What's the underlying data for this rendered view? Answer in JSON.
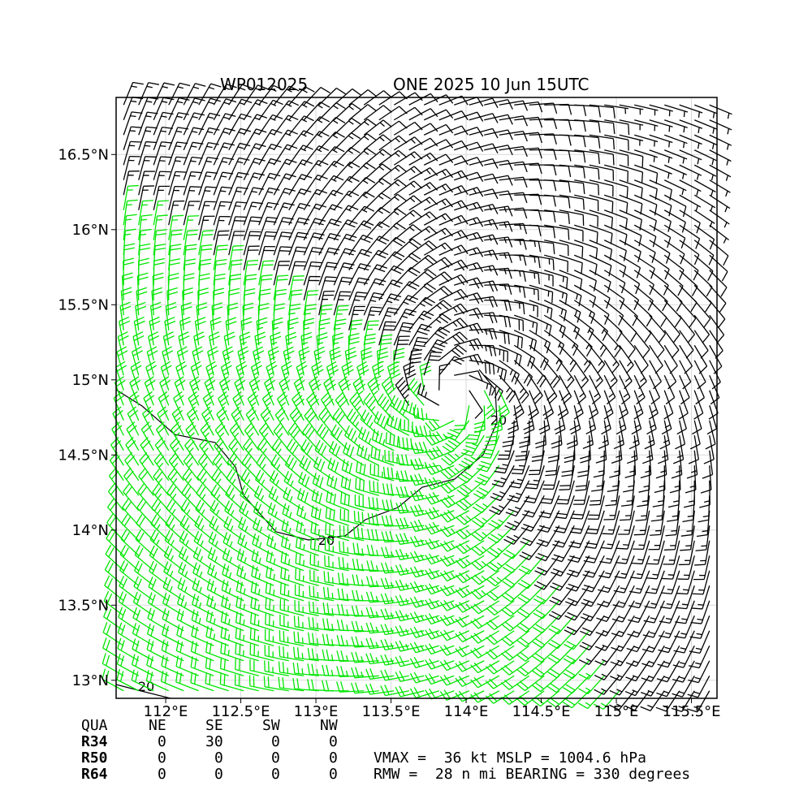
{
  "title": {
    "left": "WP012025",
    "right": "ONE 2025 10 Jun 15UTC"
  },
  "chart_data": {
    "type": "wind_barb_map",
    "xlim": [
      111.67,
      115.67
    ],
    "ylim": [
      12.88,
      16.88
    ],
    "xticks": [
      112.0,
      112.5,
      113.0,
      113.5,
      114.0,
      114.5,
      115.0,
      115.5
    ],
    "xtick_labels": [
      "112°E",
      "112.5°E",
      "113°E",
      "113.5°E",
      "114°E",
      "114.5°E",
      "115°E",
      "115.5°E"
    ],
    "yticks": [
      13.0,
      13.5,
      14.0,
      14.5,
      15.0,
      15.5,
      16.0,
      16.5
    ],
    "ytick_labels": [
      "13°N",
      "13.5°N",
      "14°N",
      "14.5°N",
      "15°N",
      "15.5°N",
      "16°N",
      "16.5°N"
    ],
    "grid": true,
    "center": {
      "lon": 113.9,
      "lat": 14.9
    },
    "wind_field": {
      "max_speed_kt": 36,
      "rmw_nmi": 28,
      "strong_quadrant": "SW",
      "barb_spacing_deg": 0.1
    },
    "contour_labels": [
      "20",
      "20",
      "20"
    ],
    "colors": {
      "weak_barb": "#000000",
      "strong_barb": "#00e600",
      "contour": "#000000",
      "grid": "#d9d9d9"
    }
  },
  "radii_table": {
    "headers": [
      "QUA",
      "NE",
      "SE",
      "SW",
      "NW"
    ],
    "rows": [
      {
        "label": "R34",
        "values": [
          "0",
          "30",
          "0",
          "0"
        ]
      },
      {
        "label": "R50",
        "values": [
          "0",
          "0",
          "0",
          "0"
        ]
      },
      {
        "label": "R64",
        "values": [
          "0",
          "0",
          "0",
          "0"
        ]
      }
    ]
  },
  "stats": {
    "line1": "VMAX =  36 kt MSLP = 1004.6 hPa",
    "line2": "RMW =  28 n mi BEARING = 330 degrees"
  }
}
